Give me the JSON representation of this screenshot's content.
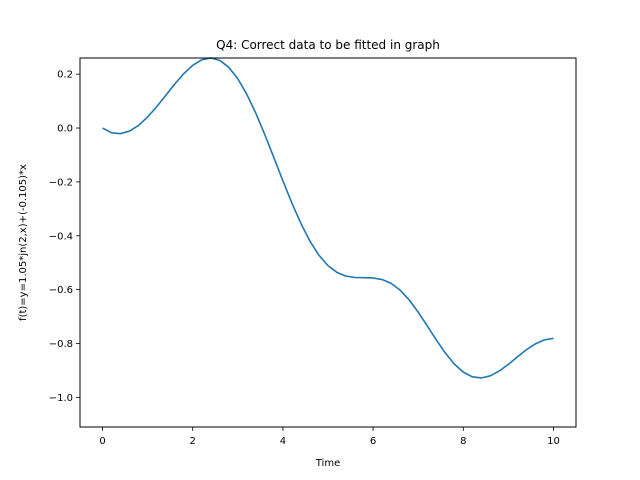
{
  "chart_data": {
    "type": "line",
    "title": "Q4: Correct data to be fitted in graph",
    "xlabel": "Time",
    "ylabel": "f(t)=y=1.05*jn(2,x)+(-0.105)*x",
    "xlim": [
      -0.5,
      10.5
    ],
    "ylim": [
      -1.11,
      0.26
    ],
    "xticks": [
      0,
      2,
      4,
      6,
      8,
      10
    ],
    "xtick_labels": [
      "0",
      "2",
      "4",
      "6",
      "8",
      "10"
    ],
    "yticks": [
      0.2,
      0.0,
      -0.2,
      -0.4,
      -0.6,
      -0.8,
      -1.0
    ],
    "ytick_labels": [
      "0.2",
      "0.0",
      "−0.2",
      "−0.4",
      "−0.6",
      "−0.8",
      "−1.0"
    ],
    "grid": false,
    "series": [
      {
        "color": "#1f77b4",
        "x": [
          0.0,
          0.2,
          0.4,
          0.6,
          0.8,
          1.0,
          1.2,
          1.4,
          1.6,
          1.8,
          2.0,
          2.2,
          2.4,
          2.6,
          2.8,
          3.0,
          3.2,
          3.4,
          3.6,
          3.8,
          4.0,
          4.2,
          4.4,
          4.6,
          4.8,
          5.0,
          5.2,
          5.4,
          5.6,
          5.8,
          6.0,
          6.2,
          6.4,
          6.6,
          6.8,
          7.0,
          7.2,
          7.4,
          7.6,
          7.8,
          8.0,
          8.2,
          8.4,
          8.6,
          8.8,
          9.0,
          9.2,
          9.4,
          9.6,
          9.8,
          10.0
        ],
        "y": [
          0.0,
          -0.0178,
          -0.0209,
          -0.0111,
          0.0101,
          0.0409,
          0.0789,
          0.1208,
          0.163,
          0.2016,
          0.2329,
          0.2534,
          0.2602,
          0.2512,
          0.2254,
          0.1829,
          0.1252,
          0.0547,
          -0.0249,
          -0.11,
          -0.1962,
          -0.2791,
          -0.3548,
          -0.42,
          -0.4724,
          -0.511,
          -0.5362,
          -0.5498,
          -0.5549,
          -0.5556,
          -0.5566,
          -0.5625,
          -0.5769,
          -0.602,
          -0.6381,
          -0.6834,
          -0.7343,
          -0.7864,
          -0.835,
          -0.876,
          -0.9063,
          -0.9238,
          -0.928,
          -0.92,
          -0.902,
          -0.8773,
          -0.8497,
          -0.8232,
          -0.8013,
          -0.7866,
          -0.7807
        ]
      }
    ]
  }
}
